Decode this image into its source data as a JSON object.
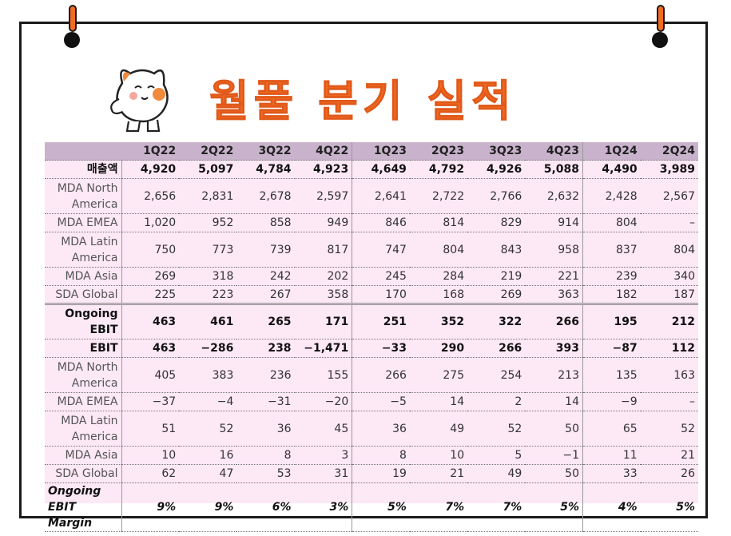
{
  "title": "월풀 분기 실적",
  "colors": {
    "accent": "#f26b22",
    "header_bg": "#c9b3cc",
    "table_bg": "#fde8f6"
  },
  "icons": {
    "pins": "pushpin-icon",
    "mascot": "cat-mascot-icon"
  },
  "table": {
    "headers": [
      "",
      "1Q22",
      "2Q22",
      "3Q22",
      "4Q22",
      "1Q23",
      "2Q23",
      "3Q23",
      "4Q23",
      "1Q24",
      "2Q24"
    ],
    "rows": [
      {
        "label": "매출액",
        "values": [
          "4,920",
          "5,097",
          "4,784",
          "4,923",
          "4,649",
          "4,792",
          "4,926",
          "5,088",
          "4,490",
          "3,989"
        ]
      },
      {
        "label": "MDA North America",
        "values": [
          "2,656",
          "2,831",
          "2,678",
          "2,597",
          "2,641",
          "2,722",
          "2,766",
          "2,632",
          "2,428",
          "2,567"
        ]
      },
      {
        "label": "MDA EMEA",
        "values": [
          "1,020",
          "952",
          "858",
          "949",
          "846",
          "814",
          "829",
          "914",
          "804",
          "–"
        ]
      },
      {
        "label": "MDA Latin America",
        "values": [
          "750",
          "773",
          "739",
          "817",
          "747",
          "804",
          "843",
          "958",
          "837",
          "804"
        ]
      },
      {
        "label": "MDA Asia",
        "values": [
          "269",
          "318",
          "242",
          "202",
          "245",
          "284",
          "219",
          "221",
          "239",
          "340"
        ]
      },
      {
        "label": "SDA Global",
        "values": [
          "225",
          "223",
          "267",
          "358",
          "170",
          "168",
          "269",
          "363",
          "182",
          "187"
        ]
      },
      {
        "label": "Ongoing EBIT",
        "values": [
          "463",
          "461",
          "265",
          "171",
          "251",
          "352",
          "322",
          "266",
          "195",
          "212"
        ]
      },
      {
        "label": "EBIT",
        "values": [
          "463",
          "−286",
          "238",
          "−1,471",
          "−33",
          "290",
          "266",
          "393",
          "−87",
          "112"
        ]
      },
      {
        "label": "MDA North America",
        "values": [
          "405",
          "383",
          "236",
          "155",
          "266",
          "275",
          "254",
          "213",
          "135",
          "163"
        ]
      },
      {
        "label": "MDA EMEA",
        "values": [
          "−37",
          "−4",
          "−31",
          "−20",
          "−5",
          "14",
          "2",
          "14",
          "−9",
          "–"
        ]
      },
      {
        "label": "MDA Latin America",
        "values": [
          "51",
          "52",
          "36",
          "45",
          "36",
          "49",
          "52",
          "50",
          "65",
          "52"
        ]
      },
      {
        "label": "MDA Asia",
        "values": [
          "10",
          "16",
          "8",
          "3",
          "8",
          "10",
          "5",
          "−1",
          "11",
          "21"
        ]
      },
      {
        "label": "SDA Global",
        "values": [
          "62",
          "47",
          "53",
          "31",
          "19",
          "21",
          "49",
          "50",
          "33",
          "26"
        ]
      },
      {
        "label": "Ongoing EBIT Margin",
        "values": [
          "9%",
          "9%",
          "6%",
          "3%",
          "5%",
          "7%",
          "7%",
          "5%",
          "4%",
          "5%"
        ]
      }
    ]
  }
}
